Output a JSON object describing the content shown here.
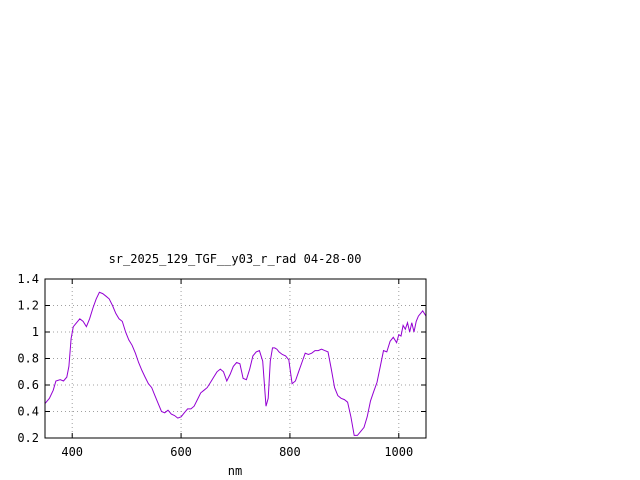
{
  "chart_data": {
    "type": "line",
    "title": "sr_2025_129_TGF__y03_r_rad 04-28-00",
    "xlabel": "nm",
    "ylabel": "",
    "xlim": [
      350,
      1050
    ],
    "ylim": [
      0.2,
      1.4
    ],
    "grid": true,
    "xticks": [
      400,
      600,
      800,
      1000
    ],
    "xtick_labels": [
      "400",
      "600",
      "800",
      "1000"
    ],
    "yticks": [
      0.2,
      0.4,
      0.6,
      0.8,
      1.0,
      1.2,
      1.4
    ],
    "ytick_labels": [
      "0.2",
      "0.4",
      "0.6",
      "0.8",
      "1",
      "1.2",
      "1.4"
    ],
    "series": [
      {
        "color": "#9400d3",
        "x": [
          350,
          358,
          365,
          370,
          378,
          384,
          390,
          394,
          398,
          402,
          408,
          414,
          420,
          426,
          432,
          438,
          444,
          450,
          456,
          462,
          468,
          474,
          480,
          486,
          492,
          498,
          504,
          510,
          516,
          522,
          528,
          534,
          540,
          546,
          552,
          558,
          564,
          570,
          576,
          582,
          588,
          594,
          600,
          606,
          612,
          618,
          624,
          630,
          636,
          642,
          648,
          654,
          660,
          666,
          672,
          678,
          684,
          690,
          696,
          702,
          708,
          714,
          720,
          726,
          732,
          738,
          744,
          750,
          756,
          760,
          764,
          768,
          772,
          776,
          780,
          786,
          792,
          798,
          804,
          810,
          816,
          822,
          828,
          834,
          840,
          846,
          852,
          858,
          864,
          870,
          876,
          882,
          888,
          894,
          900,
          906,
          912,
          918,
          924,
          930,
          936,
          942,
          948,
          954,
          960,
          966,
          972,
          978,
          984,
          990,
          996,
          1000,
          1004,
          1008,
          1012,
          1016,
          1020,
          1024,
          1028,
          1032,
          1036,
          1040,
          1044,
          1050
        ],
        "y": [
          0.46,
          0.5,
          0.56,
          0.63,
          0.64,
          0.63,
          0.66,
          0.74,
          0.95,
          1.04,
          1.07,
          1.1,
          1.08,
          1.04,
          1.1,
          1.18,
          1.25,
          1.3,
          1.29,
          1.27,
          1.25,
          1.2,
          1.14,
          1.1,
          1.08,
          1.0,
          0.94,
          0.9,
          0.84,
          0.77,
          0.71,
          0.66,
          0.61,
          0.58,
          0.52,
          0.46,
          0.4,
          0.39,
          0.41,
          0.38,
          0.37,
          0.35,
          0.36,
          0.39,
          0.42,
          0.42,
          0.44,
          0.49,
          0.54,
          0.56,
          0.58,
          0.62,
          0.66,
          0.7,
          0.72,
          0.7,
          0.63,
          0.68,
          0.74,
          0.77,
          0.76,
          0.65,
          0.64,
          0.72,
          0.82,
          0.85,
          0.86,
          0.78,
          0.44,
          0.5,
          0.78,
          0.88,
          0.88,
          0.87,
          0.85,
          0.83,
          0.82,
          0.79,
          0.61,
          0.63,
          0.7,
          0.77,
          0.84,
          0.83,
          0.84,
          0.86,
          0.86,
          0.87,
          0.86,
          0.85,
          0.72,
          0.58,
          0.52,
          0.5,
          0.49,
          0.47,
          0.36,
          0.22,
          0.22,
          0.25,
          0.28,
          0.36,
          0.48,
          0.55,
          0.62,
          0.74,
          0.86,
          0.85,
          0.93,
          0.96,
          0.92,
          0.98,
          0.97,
          1.05,
          1.02,
          1.07,
          1.0,
          1.07,
          1.0,
          1.08,
          1.12,
          1.14,
          1.16,
          1.12
        ]
      }
    ]
  }
}
